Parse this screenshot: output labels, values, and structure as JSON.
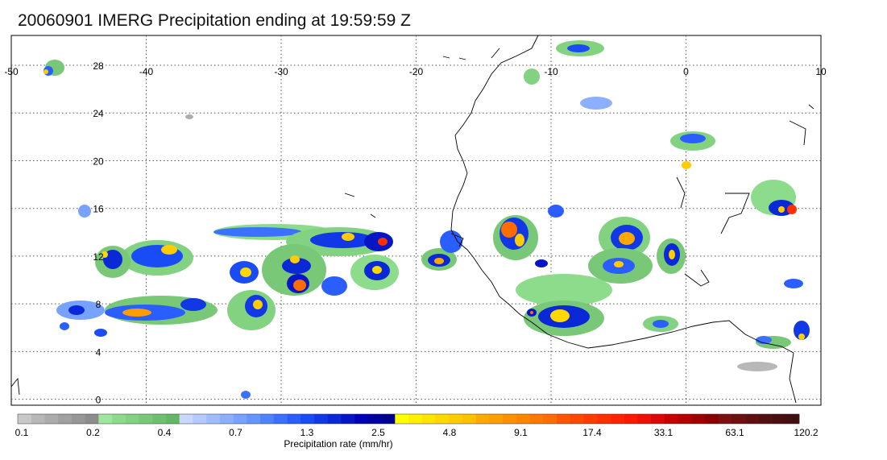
{
  "title": "20060901 IMERG Precipitation ending at 19:59:59 Z",
  "map": {
    "lon_range": [
      -50,
      10
    ],
    "lat_range": [
      -0.5,
      30.5
    ],
    "lon_ticks": [
      "-50",
      "-40",
      "-30",
      "-20",
      "-10",
      "0",
      "10"
    ],
    "lat_ticks": [
      "0",
      "4",
      "8",
      "12",
      "16",
      "20",
      "24",
      "28"
    ],
    "grid": "dotted",
    "colors": {
      "coast": "#000000",
      "grid": "#555555"
    }
  },
  "colorbar": {
    "label": "Precipitation rate (mm/hr)",
    "tick_labels": [
      "0.1",
      "0.2",
      "0.4",
      "0.7",
      "1.3",
      "2.5",
      "4.8",
      "9.1",
      "17.4",
      "33.1",
      "63.1",
      "120.2"
    ],
    "colors": [
      "#c8c8c8",
      "#b8b8b8",
      "#acacac",
      "#a0a0a0",
      "#969696",
      "#8c8c8c",
      "#9ee69e",
      "#8cdc8c",
      "#82d282",
      "#78c878",
      "#6ec06e",
      "#64b864",
      "#c8d8ff",
      "#b4caff",
      "#a0bcff",
      "#8cb0ff",
      "#78a2ff",
      "#6494ff",
      "#4f82ff",
      "#3c70ff",
      "#2a5eff",
      "#1a4cf6",
      "#1238e6",
      "#0a28d6",
      "#0616c6",
      "#0000b4",
      "#0000a0",
      "#000090",
      "#ffff00",
      "#fff000",
      "#ffe400",
      "#ffd800",
      "#ffcc00",
      "#ffc000",
      "#ffa800",
      "#ff9c00",
      "#ff9000",
      "#ff8400",
      "#ff7800",
      "#ff6c00",
      "#ff5400",
      "#ff4800",
      "#ff3c00",
      "#ff3000",
      "#ff2400",
      "#ff1800",
      "#ee1000",
      "#dc0808",
      "#c80000",
      "#b40000",
      "#a00000",
      "#8c0000",
      "#7a1010",
      "#6c1010",
      "#601010",
      "#541010",
      "#4a1010",
      "#401010"
    ]
  }
}
